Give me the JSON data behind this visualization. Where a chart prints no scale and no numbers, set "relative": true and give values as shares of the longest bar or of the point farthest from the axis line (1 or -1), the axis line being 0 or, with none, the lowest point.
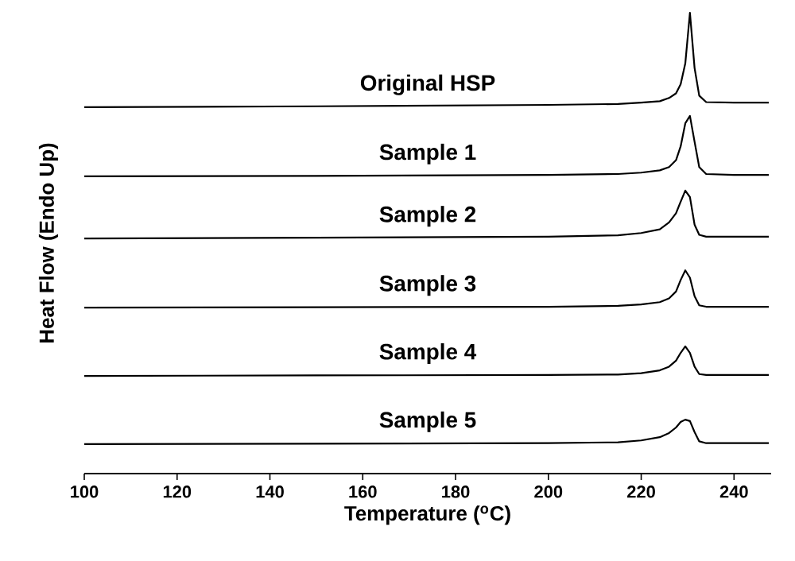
{
  "chart_data": {
    "type": "line",
    "relative": true,
    "xlabel": "Temperature ($^{o}$C)",
    "ylabel": "Heat Flow (Endo Up)",
    "xlim": [
      100,
      248
    ],
    "xticks": [
      100,
      120,
      140,
      160,
      180,
      200,
      220,
      240
    ],
    "tick_labels": "x",
    "grid": false,
    "marker": "none",
    "line_style": "solid",
    "series": [
      {
        "name": "Original HSP",
        "color": "#000000",
        "x": [
          100,
          150,
          200,
          215,
          220,
          224,
          226,
          227.5,
          228.5,
          229.5,
          230.5,
          231.5,
          232.5,
          234,
          240,
          247.5
        ],
        "values": [
          0.795,
          0.797,
          0.8,
          0.802,
          0.805,
          0.808,
          0.815,
          0.825,
          0.845,
          0.89,
          1.0,
          0.88,
          0.82,
          0.806,
          0.805,
          0.805
        ]
      },
      {
        "name": "Sample 1",
        "color": "#000000",
        "x": [
          100,
          150,
          200,
          215,
          220,
          224,
          226,
          227.5,
          228.5,
          229.5,
          230.5,
          231.5,
          232.5,
          234,
          240,
          247.5
        ],
        "values": [
          0.645,
          0.646,
          0.648,
          0.65,
          0.653,
          0.658,
          0.665,
          0.68,
          0.71,
          0.76,
          0.776,
          0.72,
          0.665,
          0.65,
          0.648,
          0.648
        ]
      },
      {
        "name": "Sample 2",
        "color": "#000000",
        "x": [
          100,
          150,
          200,
          215,
          220,
          224,
          226,
          227.5,
          228.5,
          229.5,
          230.5,
          231.5,
          232.5,
          234,
          240,
          247.5
        ],
        "values": [
          0.51,
          0.512,
          0.514,
          0.517,
          0.522,
          0.53,
          0.545,
          0.565,
          0.59,
          0.614,
          0.6,
          0.54,
          0.518,
          0.514,
          0.514,
          0.514
        ]
      },
      {
        "name": "Sample 3",
        "color": "#000000",
        "x": [
          100,
          150,
          200,
          215,
          220,
          224,
          226,
          227.5,
          228.5,
          229.5,
          230.5,
          231.5,
          232.5,
          234,
          240,
          247.5
        ],
        "values": [
          0.36,
          0.361,
          0.362,
          0.364,
          0.367,
          0.372,
          0.38,
          0.395,
          0.42,
          0.441,
          0.425,
          0.385,
          0.365,
          0.362,
          0.362,
          0.362
        ]
      },
      {
        "name": "Sample 4",
        "color": "#000000",
        "x": [
          100,
          150,
          200,
          215,
          220,
          224,
          226,
          227.5,
          228.5,
          229.5,
          230.5,
          231.5,
          232.5,
          234,
          240,
          247.5
        ],
        "values": [
          0.212,
          0.213,
          0.214,
          0.215,
          0.218,
          0.224,
          0.232,
          0.245,
          0.262,
          0.276,
          0.262,
          0.232,
          0.216,
          0.214,
          0.214,
          0.214
        ]
      },
      {
        "name": "Sample 5",
        "color": "#000000",
        "x": [
          100,
          150,
          200,
          215,
          220,
          224,
          226,
          227.5,
          228.5,
          229.5,
          230.5,
          231.5,
          232.5,
          234,
          240,
          247.5
        ],
        "values": [
          0.064,
          0.065,
          0.066,
          0.068,
          0.072,
          0.079,
          0.088,
          0.1,
          0.112,
          0.117,
          0.114,
          0.09,
          0.07,
          0.066,
          0.066,
          0.066
        ]
      }
    ]
  }
}
